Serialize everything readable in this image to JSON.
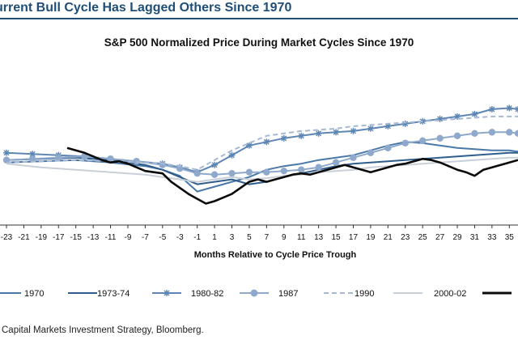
{
  "header": {
    "title": "urrent Bull Cycle Has Lagged Others Since 1970"
  },
  "source": {
    "text": "Capital Markets Investment Strategy, Bloomberg."
  },
  "chart_data": {
    "type": "line",
    "title": "S&P 500 Normalized Price During Market Cycles Since 1970",
    "xlabel": "Months Relative to Cycle Price Trough",
    "ylabel": "",
    "xlim": [
      -23,
      36
    ],
    "ylim": [
      55,
      150
    ],
    "grid": false,
    "legend_position": "bottom",
    "x_ticks": [
      -23,
      -21,
      -19,
      -17,
      -15,
      -13,
      -11,
      -9,
      -7,
      -5,
      -3,
      -1,
      1,
      3,
      5,
      7,
      9,
      11,
      13,
      15,
      17,
      19,
      21,
      23,
      25,
      27,
      29,
      31,
      33,
      35
    ],
    "x_tick_labels": [
      "-23",
      "-21",
      "-19",
      "-17",
      "-15",
      "-13",
      "-11",
      "-9",
      "-7",
      "-5",
      "-3",
      "-1",
      "1",
      "3",
      "5",
      "7",
      "9",
      "11",
      "13",
      "15",
      "17",
      "19",
      "21",
      "23",
      "25",
      "27",
      "29",
      "31",
      "33",
      "35"
    ],
    "series": [
      {
        "name": "1970",
        "color": "#4a78a8",
        "style": "solid",
        "x": [
          -23,
          -19,
          -15,
          -11,
          -7,
          -5,
          -3,
          -1,
          1,
          3,
          5,
          7,
          9,
          11,
          13,
          15,
          17,
          19,
          21,
          23,
          25,
          27,
          29,
          31,
          33,
          35,
          36
        ],
        "y": [
          96,
          97,
          98,
          96,
          93,
          90,
          85,
          72,
          76,
          80,
          84,
          90,
          93,
          95,
          98,
          100,
          102,
          106,
          110,
          113,
          112,
          110,
          108,
          107,
          106,
          106,
          105
        ]
      },
      {
        "name": "1973-74",
        "color": "#2f5d8c",
        "style": "solid",
        "x": [
          -23,
          -19,
          -15,
          -11,
          -7,
          -5,
          -3,
          -1,
          1,
          3,
          5,
          7,
          9,
          11,
          13,
          15,
          17,
          19,
          21,
          23,
          25,
          27,
          29,
          31,
          33,
          35,
          36
        ],
        "y": [
          98,
          99,
          100,
          98,
          94,
          90,
          84,
          78,
          80,
          82,
          78,
          80,
          84,
          87,
          90,
          93,
          95,
          96,
          97,
          98,
          99,
          100,
          101,
          102,
          103,
          104,
          104
        ]
      },
      {
        "name": "1980-82",
        "color": "#5d86b4",
        "style": "asterisk",
        "x": [
          -23,
          -20,
          -17,
          -14,
          -11,
          -8,
          -5,
          -3,
          -1,
          1,
          3,
          5,
          7,
          9,
          11,
          13,
          15,
          17,
          19,
          21,
          23,
          25,
          27,
          29,
          31,
          33,
          35,
          36
        ],
        "y": [
          104,
          103,
          102,
          101,
          99,
          97,
          95,
          92,
          88,
          94,
          102,
          110,
          113,
          116,
          118,
          120,
          121,
          122,
          124,
          126,
          128,
          130,
          132,
          134,
          136,
          140,
          141,
          140
        ]
      },
      {
        "name": "1987",
        "color": "#8ea9cc",
        "style": "circle",
        "x": [
          -23,
          -20,
          -17,
          -14,
          -11,
          -8,
          -5,
          -3,
          -1,
          1,
          3,
          5,
          7,
          9,
          11,
          13,
          15,
          17,
          19,
          21,
          23,
          25,
          27,
          29,
          31,
          33,
          35,
          36
        ],
        "y": [
          98,
          99,
          100,
          101,
          99,
          97,
          94,
          91,
          87,
          86,
          87,
          88,
          88,
          89,
          90,
          92,
          96,
          100,
          104,
          108,
          112,
          114,
          116,
          118,
          120,
          121,
          121,
          120
        ]
      },
      {
        "name": "1990",
        "color": "#a7b9d2",
        "style": "dashed",
        "x": [
          -23,
          -19,
          -15,
          -11,
          -7,
          -5,
          -3,
          -1,
          1,
          3,
          5,
          7,
          9,
          11,
          13,
          15,
          17,
          19,
          21,
          23,
          25,
          27,
          29,
          31,
          33,
          35,
          36
        ],
        "y": [
          96,
          97,
          98,
          97,
          96,
          95,
          93,
          90,
          98,
          106,
          112,
          118,
          120,
          122,
          123,
          124,
          126,
          127,
          128,
          129,
          130,
          131,
          132,
          133,
          134,
          134,
          134
        ]
      },
      {
        "name": "2000-02",
        "color": "#c9cfd8",
        "style": "solid",
        "x": [
          -23,
          -19,
          -15,
          -11,
          -7,
          -5,
          -3,
          -1,
          1,
          3,
          5,
          7,
          9,
          11,
          13,
          15,
          17,
          19,
          21,
          23,
          25,
          27,
          29,
          31,
          33,
          35,
          36
        ],
        "y": [
          95,
          92,
          90,
          88,
          86,
          84,
          82,
          80,
          82,
          84,
          82,
          83,
          85,
          86,
          88,
          89,
          90,
          92,
          93,
          94,
          95,
          96,
          97,
          98,
          99,
          100,
          100
        ]
      },
      {
        "name": "",
        "color": "#0a0a0a",
        "style": "solid-thick",
        "x": [
          -16,
          -15,
          -14,
          -13,
          -12,
          -11,
          -10,
          -9,
          -8,
          -7,
          -6,
          -5,
          -4,
          -3,
          -2,
          -1,
          0,
          1,
          2,
          3,
          4,
          5,
          6,
          7,
          8,
          9,
          10,
          11,
          12,
          13,
          14,
          15,
          16,
          17,
          18,
          19,
          20,
          21,
          22,
          23,
          24,
          25,
          26,
          27,
          28,
          29,
          30,
          31,
          32,
          33,
          34,
          35,
          36
        ],
        "y": [
          108,
          106,
          104,
          101,
          98,
          96,
          97,
          95,
          92,
          89,
          88,
          87,
          80,
          75,
          70,
          66,
          62,
          64,
          67,
          70,
          75,
          80,
          82,
          80,
          82,
          84,
          86,
          87,
          86,
          88,
          90,
          92,
          94,
          92,
          90,
          88,
          90,
          92,
          94,
          95,
          97,
          99,
          98,
          96,
          93,
          90,
          88,
          85,
          90,
          92,
          94,
          96,
          98
        ]
      }
    ]
  }
}
